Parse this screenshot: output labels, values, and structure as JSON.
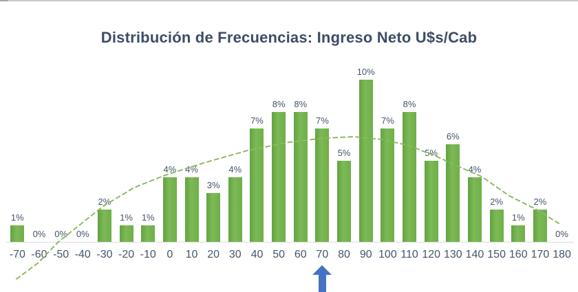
{
  "page": {
    "background": "#ffffff",
    "top_border_color": "#c9c9c9"
  },
  "title": {
    "text": "Distribución de Frecuencias: Ingreso Neto U$s/Cab",
    "color": "#3d4c66"
  },
  "chart_data": {
    "type": "bar",
    "title": "Distribución de Frecuencias: Ingreso Neto U$s/Cab",
    "categories": [
      "-70",
      "-60",
      "-50",
      "-40",
      "-30",
      "-20",
      "-10",
      "0",
      "10",
      "20",
      "30",
      "40",
      "50",
      "60",
      "70",
      "80",
      "90",
      "100",
      "110",
      "120",
      "130",
      "140",
      "150",
      "160",
      "170",
      "180"
    ],
    "values": [
      1,
      0,
      0,
      0,
      2,
      1,
      1,
      4,
      4,
      3,
      4,
      7,
      8,
      8,
      7,
      5,
      10,
      7,
      8,
      5,
      6,
      4,
      2,
      1,
      2,
      0
    ],
    "value_labels": [
      "1%",
      "0%",
      "0%",
      "0%",
      "2%",
      "1%",
      "1%",
      "4%",
      "4%",
      "3%",
      "4%",
      "7%",
      "8%",
      "8%",
      "7%",
      "5%",
      "10%",
      "7%",
      "8%",
      "5%",
      "6%",
      "4%",
      "2%",
      "1%",
      "2%",
      "0%"
    ],
    "xlabel": "",
    "ylabel": "",
    "ylim": [
      0,
      10.5
    ],
    "grid": false,
    "legend": "none",
    "bar_color": "#70ad47",
    "data_label_color": "#44546a",
    "axis_label_color": "#44546a",
    "overlay_curve": {
      "description": "dashed normal-distribution trend curve",
      "style": "dashed",
      "color": "#8cba5f"
    },
    "annotation_arrow": {
      "description": "blue upward arrow below the x axis highlighting a category",
      "points_at_category": "70",
      "color": "#4472c4"
    }
  }
}
